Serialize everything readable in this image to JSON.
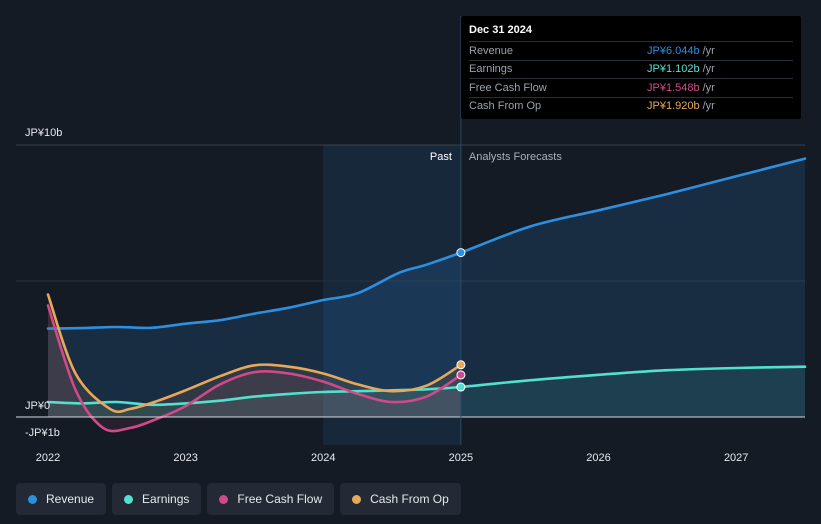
{
  "chart_data": {
    "type": "line",
    "title": "",
    "currency_unit": "JP¥",
    "y_labels": {
      "top": "JP¥10b",
      "zero": "JP¥0",
      "bottom": "-JP¥1b"
    },
    "ylim": [
      -1,
      10
    ],
    "xlim": [
      2022.0,
      2027.5
    ],
    "x_ticks": [
      {
        "value": 2022,
        "label": "2022"
      },
      {
        "value": 2023,
        "label": "2023"
      },
      {
        "value": 2024,
        "label": "2024"
      },
      {
        "value": 2025,
        "label": "2025"
      },
      {
        "value": 2026,
        "label": "2026"
      },
      {
        "value": 2027,
        "label": "2027"
      }
    ],
    "divider_x": 2025.0,
    "past_start_x": 2024.0,
    "region_labels": {
      "past": "Past",
      "forecast": "Analysts Forecasts"
    },
    "series": [
      {
        "name": "Revenue",
        "color": "#2d8fe0",
        "points": [
          [
            2022.0,
            3.25
          ],
          [
            2022.25,
            3.27
          ],
          [
            2022.5,
            3.31
          ],
          [
            2022.75,
            3.28
          ],
          [
            2023.0,
            3.43
          ],
          [
            2023.25,
            3.56
          ],
          [
            2023.5,
            3.8
          ],
          [
            2023.75,
            4.02
          ],
          [
            2024.0,
            4.3
          ],
          [
            2024.25,
            4.55
          ],
          [
            2024.55,
            5.3
          ],
          [
            2024.75,
            5.6
          ],
          [
            2025.0,
            6.044
          ],
          [
            2025.5,
            7.0
          ],
          [
            2026.0,
            7.6
          ],
          [
            2026.5,
            8.2
          ],
          [
            2027.0,
            8.85
          ],
          [
            2027.5,
            9.5
          ]
        ]
      },
      {
        "name": "Earnings",
        "color": "#52e0cf",
        "points": [
          [
            2022.0,
            0.55
          ],
          [
            2022.25,
            0.5
          ],
          [
            2022.5,
            0.55
          ],
          [
            2022.75,
            0.45
          ],
          [
            2023.0,
            0.5
          ],
          [
            2023.25,
            0.6
          ],
          [
            2023.5,
            0.75
          ],
          [
            2023.75,
            0.85
          ],
          [
            2024.0,
            0.92
          ],
          [
            2024.25,
            0.95
          ],
          [
            2024.5,
            0.98
          ],
          [
            2024.75,
            1.02
          ],
          [
            2025.0,
            1.102
          ],
          [
            2025.5,
            1.35
          ],
          [
            2026.0,
            1.55
          ],
          [
            2026.5,
            1.72
          ],
          [
            2027.0,
            1.8
          ],
          [
            2027.5,
            1.85
          ]
        ]
      },
      {
        "name": "Free Cash Flow",
        "color": "#d04a8a",
        "points": [
          [
            2022.0,
            4.1
          ],
          [
            2022.2,
            1.0
          ],
          [
            2022.4,
            -0.4
          ],
          [
            2022.6,
            -0.4
          ],
          [
            2022.8,
            -0.05
          ],
          [
            2023.0,
            0.4
          ],
          [
            2023.25,
            1.2
          ],
          [
            2023.5,
            1.65
          ],
          [
            2023.75,
            1.6
          ],
          [
            2024.0,
            1.3
          ],
          [
            2024.25,
            0.85
          ],
          [
            2024.5,
            0.55
          ],
          [
            2024.75,
            0.75
          ],
          [
            2025.0,
            1.548
          ]
        ]
      },
      {
        "name": "Cash From Op",
        "color": "#e7a85c",
        "points": [
          [
            2022.0,
            4.5
          ],
          [
            2022.2,
            1.6
          ],
          [
            2022.45,
            0.3
          ],
          [
            2022.6,
            0.3
          ],
          [
            2022.8,
            0.6
          ],
          [
            2023.0,
            0.98
          ],
          [
            2023.25,
            1.5
          ],
          [
            2023.5,
            1.9
          ],
          [
            2023.75,
            1.85
          ],
          [
            2024.0,
            1.6
          ],
          [
            2024.25,
            1.2
          ],
          [
            2024.5,
            0.95
          ],
          [
            2024.75,
            1.15
          ],
          [
            2025.0,
            1.92
          ]
        ]
      }
    ]
  },
  "tooltip": {
    "date": "Dec 31 2024",
    "unit": "/yr",
    "rows": [
      {
        "label": "Revenue",
        "value": "JP¥6.044b",
        "color": "#2d8fe0"
      },
      {
        "label": "Earnings",
        "value": "JP¥1.102b",
        "color": "#52e0cf"
      },
      {
        "label": "Free Cash Flow",
        "value": "JP¥1.548b",
        "color": "#d04a8a"
      },
      {
        "label": "Cash From Op",
        "value": "JP¥1.920b",
        "color": "#e7a85c"
      }
    ]
  },
  "legend": [
    {
      "label": "Revenue",
      "color": "#2d8fe0"
    },
    {
      "label": "Earnings",
      "color": "#52e0cf"
    },
    {
      "label": "Free Cash Flow",
      "color": "#d04a8a"
    },
    {
      "label": "Cash From Op",
      "color": "#e7a85c"
    }
  ]
}
